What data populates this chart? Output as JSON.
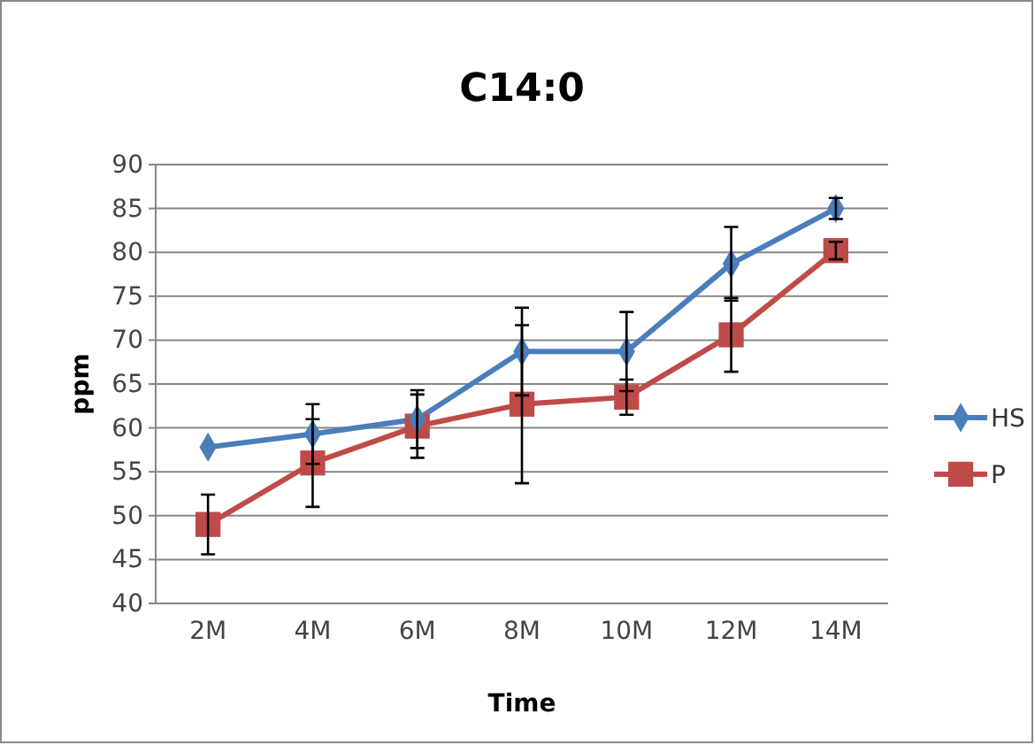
{
  "chart_data": {
    "type": "line",
    "title": "C14:0",
    "xlabel": "Time",
    "ylabel": "ppm",
    "categories": [
      "2M",
      "4M",
      "6M",
      "8M",
      "10M",
      "12M",
      "14M"
    ],
    "series": [
      {
        "name": "HS",
        "color": "#4a7ebb",
        "marker": "diamond",
        "values": [
          57.8,
          59.3,
          61,
          68.7,
          68.7,
          78.7,
          85
        ],
        "errors": [
          null,
          3.4,
          3.3,
          5,
          4.5,
          4.2,
          1.2
        ]
      },
      {
        "name": "P",
        "color": "#be4b48",
        "marker": "square",
        "values": [
          49,
          56,
          60.2,
          62.7,
          63.5,
          70.6,
          80.2
        ],
        "errors": [
          3.4,
          5,
          3.6,
          9,
          2,
          4.2,
          1
        ]
      }
    ],
    "ylim": [
      40,
      90
    ],
    "yticks": [
      40,
      45,
      50,
      55,
      60,
      65,
      70,
      75,
      80,
      85,
      90
    ],
    "grid": "y",
    "legend": "right"
  }
}
